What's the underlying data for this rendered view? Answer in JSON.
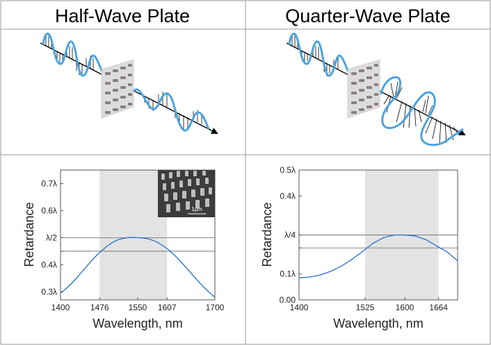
{
  "panels": {
    "left_title": "Half-Wave Plate",
    "right_title": "Quarter-Wave Plate"
  },
  "colors": {
    "wave": "#4aa3df",
    "curve": "#1f6fd1",
    "band": "#e3e3e3",
    "border": "#999999"
  },
  "sem_image": {
    "scale_label": "1μm"
  },
  "chart_data": [
    {
      "type": "line",
      "title": "",
      "xlabel": "Wavelength, nm",
      "ylabel": "Retardance",
      "xlim": [
        1400,
        1700
      ],
      "ylim": [
        0.27,
        0.75
      ],
      "x_ticks": [
        1400,
        1476,
        1550,
        1607,
        1700
      ],
      "x_tick_labels": [
        "1400",
        "1476",
        "1550",
        "1607",
        "1700"
      ],
      "y_ticks": [
        0.3,
        0.4,
        0.45,
        0.5,
        0.6,
        0.7
      ],
      "y_tick_labels": [
        "0.3λ",
        "0.4λ",
        "",
        "λ/2",
        "0.6λ",
        "0.7λ"
      ],
      "horizontal_lines": [
        0.45,
        0.5
      ],
      "band": [
        1476,
        1607
      ],
      "series": [
        {
          "name": "Retardance",
          "x": [
            1400,
            1410,
            1420,
            1430,
            1440,
            1450,
            1460,
            1470,
            1480,
            1490,
            1500,
            1510,
            1520,
            1530,
            1540,
            1550,
            1560,
            1570,
            1580,
            1590,
            1600,
            1610,
            1620,
            1630,
            1640,
            1650,
            1660,
            1670,
            1680,
            1690,
            1700
          ],
          "y": [
            0.295,
            0.31,
            0.328,
            0.348,
            0.37,
            0.392,
            0.414,
            0.434,
            0.452,
            0.468,
            0.481,
            0.491,
            0.497,
            0.5,
            0.501,
            0.5,
            0.499,
            0.496,
            0.49,
            0.481,
            0.469,
            0.455,
            0.438,
            0.419,
            0.398,
            0.377,
            0.355,
            0.334,
            0.314,
            0.296,
            0.28
          ]
        }
      ]
    },
    {
      "type": "line",
      "title": "",
      "xlabel": "Wavelength, nm",
      "ylabel": "Retardance",
      "xlim": [
        1400,
        1700
      ],
      "ylim": [
        0,
        0.5
      ],
      "x_ticks": [
        1400,
        1525,
        1600,
        1664
      ],
      "x_tick_labels": [
        "1400",
        "1525",
        "1600",
        "1664"
      ],
      "y_ticks": [
        0,
        0.1,
        0.2,
        0.25,
        0.4,
        0.5
      ],
      "y_tick_labels": [
        "0.00",
        "0.1λ",
        "",
        "λ/4",
        "0.4λ",
        "0.5λ"
      ],
      "horizontal_lines": [
        0.2,
        0.25
      ],
      "band": [
        1525,
        1664
      ],
      "series": [
        {
          "name": "Retardance",
          "x": [
            1400,
            1420,
            1440,
            1460,
            1480,
            1500,
            1520,
            1540,
            1560,
            1580,
            1600,
            1620,
            1640,
            1660,
            1680,
            1700
          ],
          "y": [
            0.085,
            0.088,
            0.096,
            0.11,
            0.13,
            0.156,
            0.186,
            0.218,
            0.24,
            0.25,
            0.25,
            0.246,
            0.232,
            0.208,
            0.185,
            0.15
          ]
        }
      ]
    }
  ]
}
